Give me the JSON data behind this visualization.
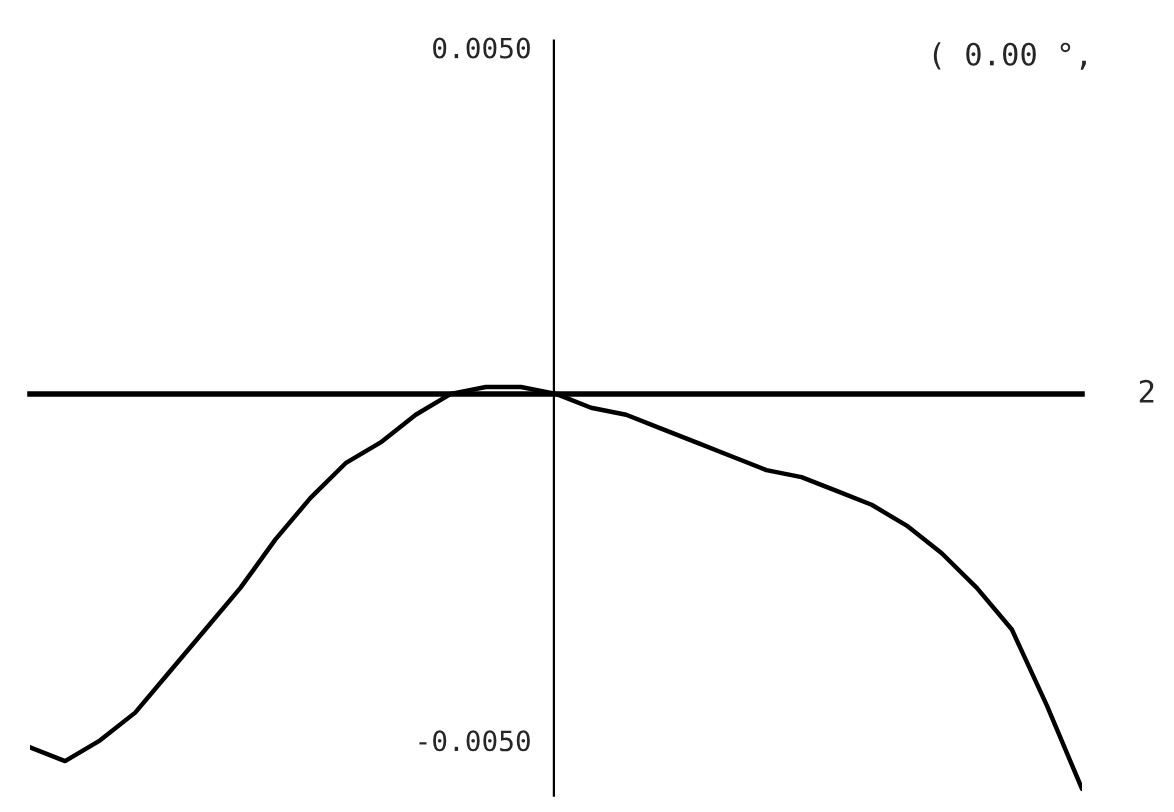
{
  "chart_data": {
    "type": "line",
    "categories": [
      null,
      null,
      null,
      null,
      null,
      null,
      null,
      null,
      null,
      null,
      null,
      null,
      null,
      null,
      null,
      null,
      null,
      null,
      null,
      null,
      null,
      null,
      null,
      null,
      null,
      null,
      null,
      null,
      null,
      null,
      null
    ],
    "series": [
      {
        "color": "#000000",
        "values": [
          -0.0051,
          -0.0053,
          -0.005,
          -0.0046,
          -0.004,
          -0.0034,
          -0.0028,
          -0.0021,
          -0.0015,
          -0.001,
          -0.0007,
          -0.0003,
          0.0,
          0.0001,
          0.0001,
          0.0,
          -0.0002,
          -0.0003,
          -0.0005,
          -0.0007,
          -0.0009,
          -0.0011,
          -0.0012,
          -0.0014,
          -0.0016,
          -0.0019,
          -0.0023,
          -0.0028,
          -0.0034,
          -0.0045,
          -0.0057
        ]
      }
    ],
    "ylim": [
      -0.0058,
      0.0051
    ],
    "yticks": [
      {
        "value": 0.005,
        "label": "0.0050"
      },
      {
        "value": -0.005,
        "label": "-0.0050"
      }
    ],
    "xlabel": "2",
    "annotations": [
      "( 0.00 °,"
    ],
    "tick_labels": "y",
    "grid": false,
    "legend": false,
    "marker": "none",
    "line_style": "solid"
  }
}
